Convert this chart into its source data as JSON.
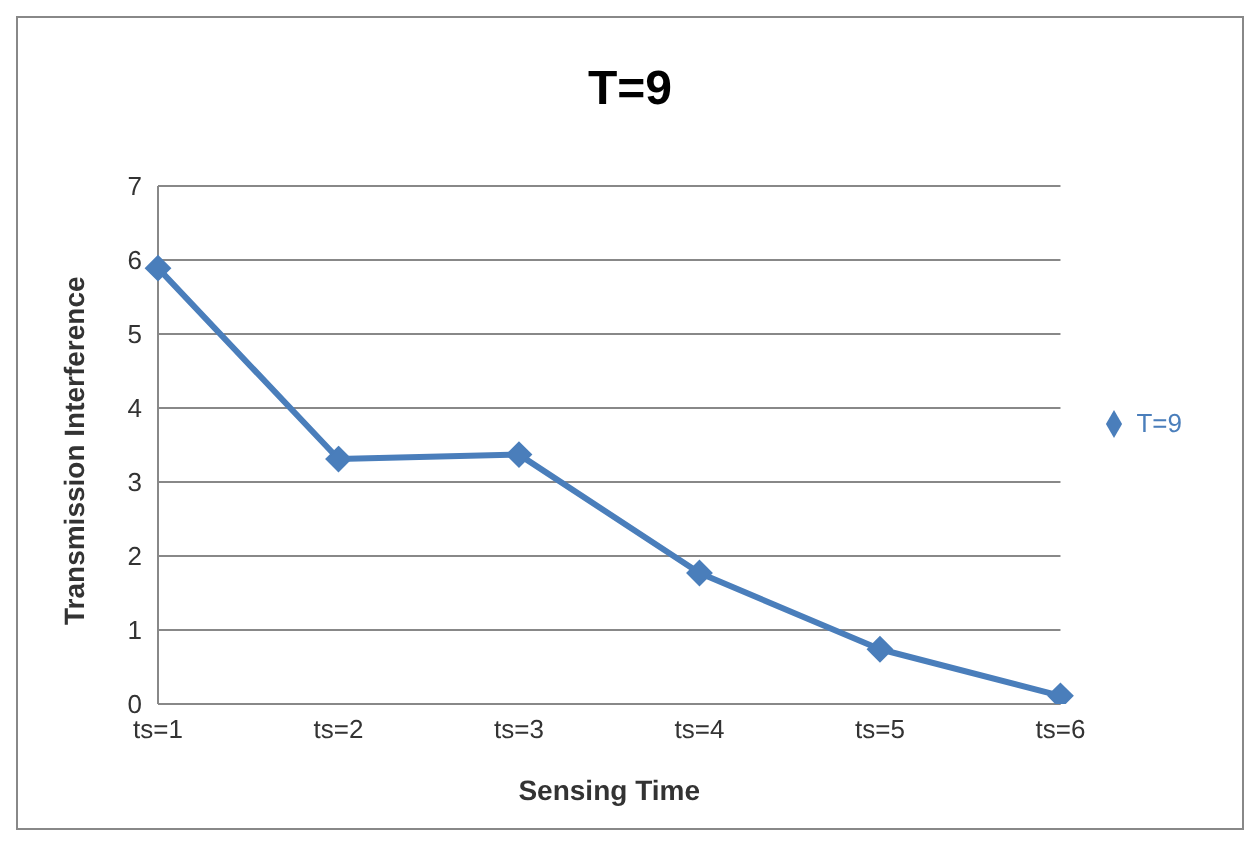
{
  "chart_data": {
    "type": "line",
    "title": "T=9",
    "xlabel": "Sensing Time",
    "ylabel": "Transmission Interference",
    "categories": [
      "ts=1",
      "ts=2",
      "ts=3",
      "ts=4",
      "ts=5",
      "ts=6"
    ],
    "series": [
      {
        "name": "T=9",
        "color": "#4a7ebb",
        "values": [
          5.89,
          3.31,
          3.37,
          1.77,
          0.74,
          0.11
        ]
      }
    ],
    "ylim": [
      0,
      7
    ],
    "yticks": [
      0,
      1,
      2,
      3,
      4,
      5,
      6,
      7
    ],
    "grid": "y",
    "legend": "right",
    "marker": "diamond",
    "line_style": "solid"
  }
}
